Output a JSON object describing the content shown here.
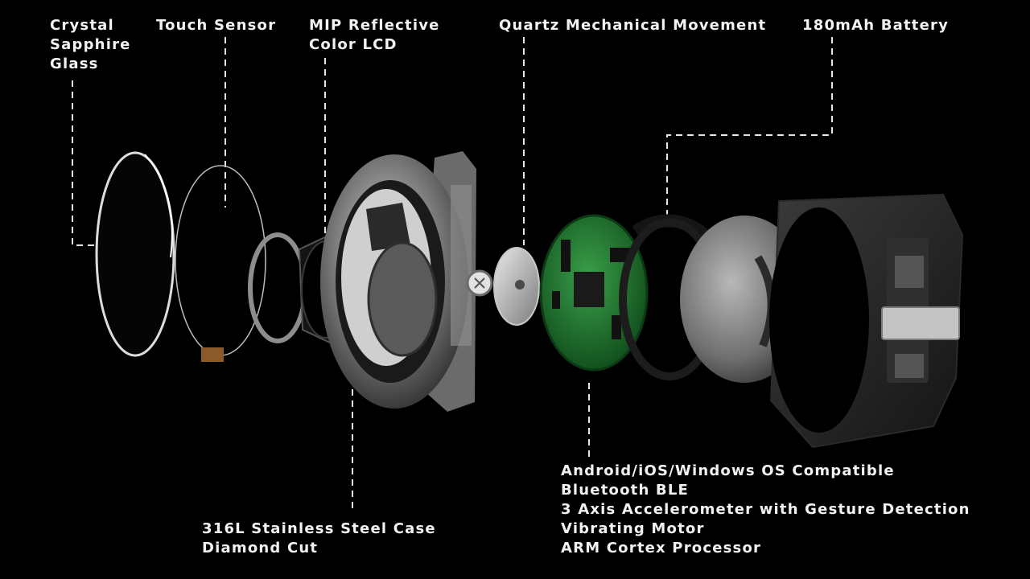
{
  "labels": {
    "crystal": [
      "Crystal",
      "Sapphire",
      "Glass"
    ],
    "touch": [
      "Touch Sensor"
    ],
    "mip": [
      "MIP Reflective",
      "Color LCD"
    ],
    "quartz": [
      "Quartz Mechanical Movement"
    ],
    "battery": [
      "180mAh Battery"
    ],
    "case": [
      "316L Stainless Steel Case",
      "Diamond Cut"
    ],
    "features": [
      "Android/iOS/Windows OS Compatible",
      "Bluetooth BLE",
      "3 Axis Accelerometer with Gesture Detection",
      "Vibrating Motor",
      "ARM Cortex Processor"
    ]
  },
  "colors": {
    "background": "#000000",
    "text": "#f2f2f2",
    "leader_line": "#e6e6e6",
    "pcb_green": "#1f7a2c",
    "steel": "#9a9a9a"
  }
}
